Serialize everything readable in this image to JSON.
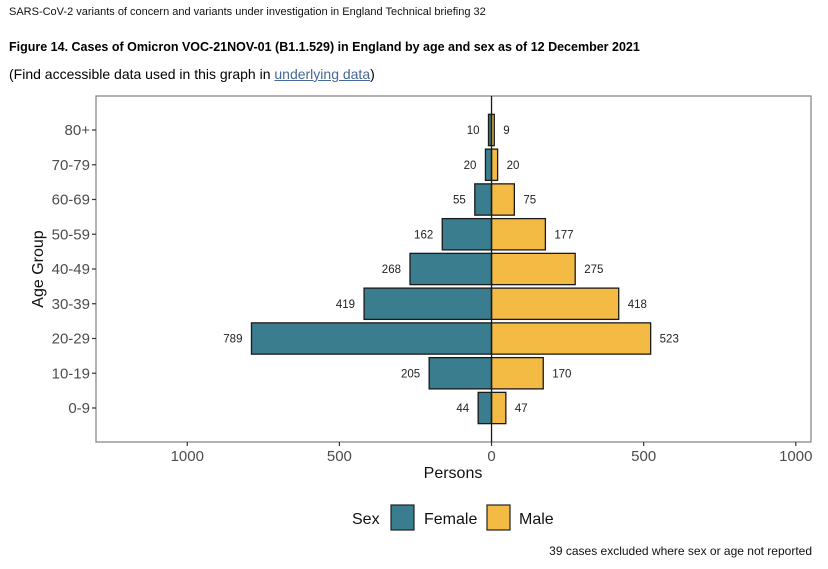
{
  "header": "SARS-CoV-2 variants of concern and variants under investigation in England Technical briefing 32",
  "figure": {
    "title": "Figure 14. Cases of Omicron VOC-21NOV-01 (B1.1.529) in England by age and sex as of 12 December 2021",
    "subtitle_prefix": "(Find accessible data used in this graph in ",
    "subtitle_link": "underlying data",
    "subtitle_suffix": ")"
  },
  "note": "39 cases excluded where sex or age not reported",
  "chart_data": {
    "type": "bar",
    "orientation": "horizontal-population-pyramid",
    "categories": [
      "0-9",
      "10-19",
      "20-29",
      "30-39",
      "40-49",
      "50-59",
      "60-69",
      "70-79",
      "80+"
    ],
    "series": [
      {
        "name": "Female",
        "color": "#3a7d8f",
        "values": [
          44,
          205,
          789,
          419,
          268,
          162,
          55,
          20,
          10
        ]
      },
      {
        "name": "Male",
        "color": "#f4bb44",
        "values": [
          47,
          170,
          523,
          418,
          275,
          177,
          75,
          20,
          9
        ]
      }
    ],
    "xlabel": "Persons",
    "ylabel": "Age Group",
    "xlim": [
      -1300,
      1050
    ],
    "xticks": [
      -1000,
      -500,
      0,
      500,
      1000
    ],
    "xtick_labels": [
      "1000",
      "500",
      "0",
      "500",
      "1000"
    ],
    "legend": {
      "title": "Sex",
      "position": "bottom",
      "entries": [
        "Female",
        "Male"
      ]
    },
    "grid": false
  }
}
